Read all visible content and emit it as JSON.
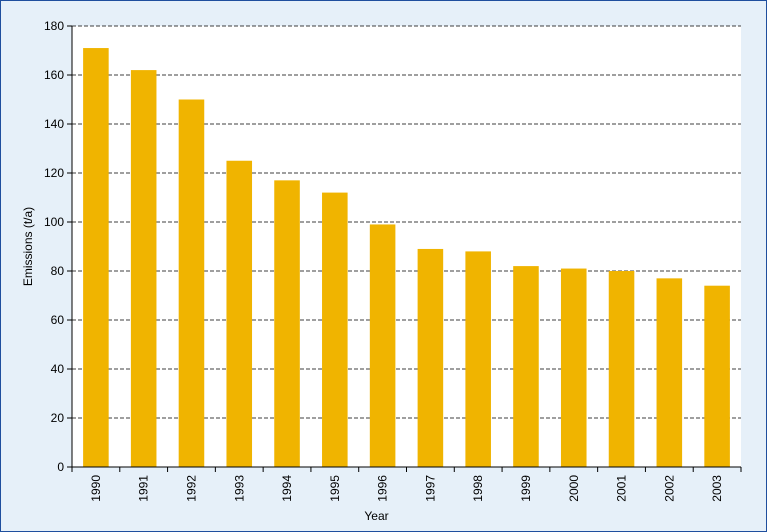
{
  "chart_data": {
    "type": "bar",
    "title": "",
    "xlabel": "Year",
    "ylabel": "Emissions (t/a)",
    "categories": [
      "1990",
      "1991",
      "1992",
      "1993",
      "1994",
      "1995",
      "1996",
      "1997",
      "1998",
      "1999",
      "2000",
      "2001",
      "2002",
      "2003"
    ],
    "values": [
      171,
      162,
      150,
      125,
      117,
      112,
      99,
      89,
      88,
      82,
      81,
      80,
      77,
      74
    ],
    "ylim": [
      0,
      180
    ],
    "yticks": [
      0,
      20,
      40,
      60,
      80,
      100,
      120,
      140,
      160,
      180
    ],
    "grid": true,
    "grid_style": "dashed",
    "legend": "none",
    "colors": {
      "bar": "#f0b400",
      "plot_background": "#ffffff",
      "frame_background": "#e6f0f9",
      "frame_border": "#1f4f9e"
    }
  }
}
